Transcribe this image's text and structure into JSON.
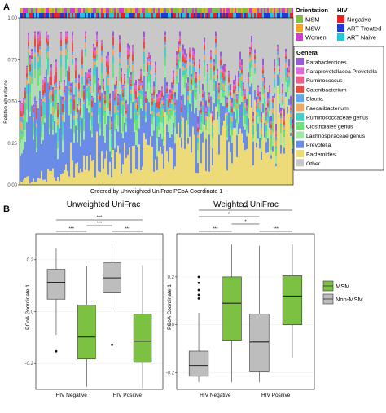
{
  "panel_a": {
    "panel_letter": "A",
    "ylabel": "Relative Abundance",
    "xlabel": "Ordered by Unweighted UniFrac PCoA Coordinate 1",
    "yticks": [
      "0.00",
      "0.25",
      "0.50",
      "0.75",
      "1.00"
    ],
    "orientation_legend": {
      "title": "Orientation",
      "items": [
        {
          "label": "MSM",
          "color": "#7cc142"
        },
        {
          "label": "MSW",
          "color": "#f5a623"
        },
        {
          "label": "Women",
          "color": "#d63bd6"
        }
      ]
    },
    "hiv_legend": {
      "title": "HIV",
      "items": [
        {
          "label": "Negative",
          "color": "#e8202a"
        },
        {
          "label": "ART Treated",
          "color": "#1f3ad0"
        },
        {
          "label": "ART Naive",
          "color": "#21c5d9"
        }
      ]
    },
    "genera_legend": {
      "title": "Genera",
      "items": [
        {
          "label": "Parabacteroides",
          "color": "#9b59d6"
        },
        {
          "label": "Paraprevotellacea Prevotella",
          "color": "#e06ad6"
        },
        {
          "label": "Ruminococcus",
          "color": "#f25c8a"
        },
        {
          "label": "Catenibacterium",
          "color": "#e74c3c"
        },
        {
          "label": "Blautia",
          "color": "#5fa8f0"
        },
        {
          "label": "Faecalibacterium",
          "color": "#f0a868"
        },
        {
          "label": "Ruminococcaceae genus",
          "color": "#42d1c6"
        },
        {
          "label": "Clostridiales genus",
          "color": "#6ee07a"
        },
        {
          "label": "Lachnospiraceae genus",
          "color": "#a0e8a8"
        },
        {
          "label": "Prevotella",
          "color": "#6b8ce6"
        },
        {
          "label": "Bacteroides",
          "color": "#ecdb78"
        },
        {
          "label": "Other",
          "color": "#c8c8c8"
        }
      ]
    }
  },
  "panel_b": {
    "panel_letter": "B",
    "legend": {
      "items": [
        {
          "label": "MSM",
          "color": "#7cc142"
        },
        {
          "label": "Non-MSM",
          "color": "#bdbdbd"
        }
      ]
    },
    "plots": [
      {
        "title": "Unweighted UniFrac",
        "ylabel": "PCoA Coordinate 1",
        "yticks": [
          "0.2",
          "0.0",
          "-0.2"
        ],
        "sig": [
          "***",
          "***",
          "***",
          "***"
        ]
      },
      {
        "title": "Weighted UniFrac",
        "ylabel": "PCoA Coordinate 1",
        "yticks": [
          "0.2",
          "0.0",
          "-0.2"
        ],
        "sig": [
          "***",
          "^",
          "***",
          "*",
          "***"
        ]
      }
    ]
  },
  "chart_data": [
    {
      "type": "bar",
      "stacked": true,
      "xlabel": "Ordered by Unweighted UniFrac PCoA Coordinate 1",
      "ylabel": "Relative Abundance",
      "ylim": [
        0,
        1
      ],
      "legend_placement": "right",
      "series_order_bottom_to_top": [
        "Bacteroides",
        "Prevotella",
        "Lachnospiraceae genus",
        "Clostridiales genus",
        "Ruminococcaceae genus",
        "Faecalibacterium",
        "Blautia",
        "Catenibacterium",
        "Ruminococcus",
        "Paraprevotellacea Prevotella",
        "Parabacteroides",
        "Other"
      ],
      "left_samples_typical": {
        "Bacteroides": 0.02,
        "Prevotella": 0.35,
        "Lachnospiraceae genus": 0.08,
        "Clostridiales genus": 0.06,
        "Ruminococcaceae genus": 0.06,
        "Faecalibacterium": 0.03,
        "Blautia": 0.02,
        "Catenibacterium": 0.04,
        "Ruminococcus": 0.02,
        "Paraprevotellacea Prevotella": 0.02,
        "Parabacteroides": 0.01
      },
      "right_samples_typical": {
        "Bacteroides": 0.35,
        "Prevotella": 0.02,
        "Lachnospiraceae genus": 0.05,
        "Clostridiales genus": 0.04,
        "Ruminococcaceae genus": 0.03,
        "Faecalibacterium": 0.02,
        "Blautia": 0.02,
        "Catenibacterium": 0.01,
        "Ruminococcus": 0.01,
        "Paraprevotellacea Prevotella": 0.01,
        "Parabacteroides": 0.03
      }
    },
    {
      "type": "box",
      "title": "Unweighted UniFrac",
      "ylabel": "PCoA Coordinate 1",
      "categories": [
        "HIV Negative",
        "HIV Positive"
      ],
      "ylim": [
        -0.3,
        0.3
      ],
      "series": [
        {
          "name": "Non-MSM",
          "boxes": [
            {
              "whisker_low": -0.09,
              "q1": 0.048,
              "median": 0.113,
              "q3": 0.163,
              "whisker_high": 0.245,
              "outliers": [
                -0.153
              ]
            },
            {
              "whisker_low": 0.0,
              "q1": 0.072,
              "median": 0.13,
              "q3": 0.188,
              "whisker_high": 0.262,
              "outliers": [
                -0.128
              ]
            }
          ]
        },
        {
          "name": "MSM",
          "boxes": [
            {
              "whisker_low": -0.29,
              "q1": -0.183,
              "median": -0.098,
              "q3": 0.025,
              "whisker_high": 0.175,
              "outliers": []
            },
            {
              "whisker_low": -0.295,
              "q1": -0.196,
              "median": -0.114,
              "q3": -0.01,
              "whisker_high": 0.18,
              "outliers": []
            }
          ]
        }
      ],
      "significance": [
        {
          "groups": [
            "HIV Negative / Non-MSM",
            "HIV Positive / MSM"
          ],
          "label": "***"
        },
        {
          "groups": [
            "HIV Negative / MSM",
            "HIV Positive / Non-MSM"
          ],
          "label": "***"
        },
        {
          "groups": [
            "HIV Negative / Non-MSM",
            "HIV Negative / MSM"
          ],
          "label": "***"
        },
        {
          "groups": [
            "HIV Positive / Non-MSM",
            "HIV Positive / MSM"
          ],
          "label": "***"
        }
      ]
    },
    {
      "type": "box",
      "title": "Weighted UniFrac",
      "ylabel": "PCoA Coordinate 1",
      "categories": [
        "HIV Negative",
        "HIV Positive"
      ],
      "ylim": [
        -0.27,
        0.38
      ],
      "series": [
        {
          "name": "Non-MSM",
          "boxes": [
            {
              "whisker_low": -0.24,
              "q1": -0.215,
              "median": -0.17,
              "q3": -0.11,
              "whisker_high": 0.05,
              "outliers": [
                0.2,
                0.175,
                0.145,
                0.125,
                0.11
              ]
            },
            {
              "whisker_low": -0.24,
              "q1": -0.197,
              "median": -0.072,
              "q3": 0.045,
              "whisker_high": 0.33,
              "outliers": []
            }
          ]
        },
        {
          "name": "MSM",
          "boxes": [
            {
              "whisker_low": -0.24,
              "q1": -0.065,
              "median": 0.09,
              "q3": 0.2,
              "whisker_high": 0.335,
              "outliers": []
            },
            {
              "whisker_low": -0.14,
              "q1": 0.0,
              "median": 0.12,
              "q3": 0.205,
              "whisker_high": 0.335,
              "outliers": []
            }
          ]
        }
      ],
      "significance": [
        {
          "groups": [
            "HIV Negative / Non-MSM",
            "HIV Positive / MSM"
          ],
          "label": "***"
        },
        {
          "groups": [
            "HIV Negative / Non-MSM",
            "HIV Positive / Non-MSM"
          ],
          "label": "^"
        },
        {
          "groups": [
            "HIV Negative / Non-MSM",
            "HIV Negative / MSM"
          ],
          "label": "***"
        },
        {
          "groups": [
            "HIV Negative / MSM",
            "HIV Positive / Non-MSM"
          ],
          "label": "*"
        },
        {
          "groups": [
            "HIV Positive / Non-MSM",
            "HIV Positive / MSM"
          ],
          "label": "***"
        }
      ]
    }
  ]
}
